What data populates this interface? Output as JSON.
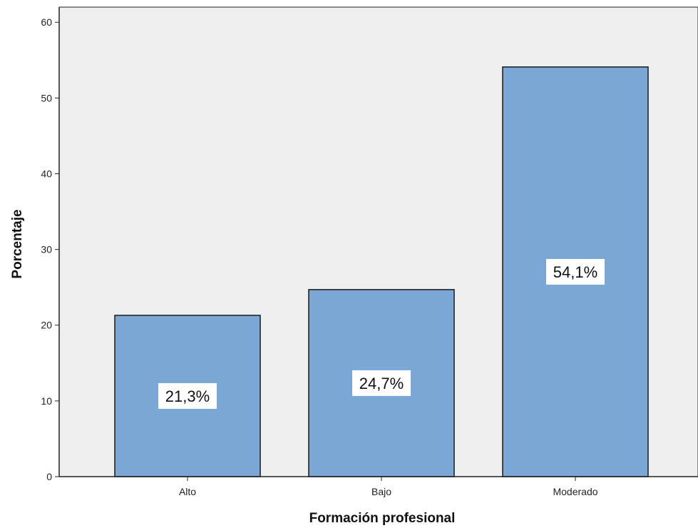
{
  "chart_data": {
    "type": "bar",
    "title": "",
    "xlabel": "Formación profesional",
    "ylabel": "Porcentaje",
    "categories": [
      "Alto",
      "Bajo",
      "Moderado"
    ],
    "values": [
      21.3,
      24.7,
      54.1
    ],
    "data_labels": [
      "21,3%",
      "24,7%",
      "54,1%"
    ],
    "ylim": [
      0,
      62
    ],
    "yticks": [
      0,
      10,
      20,
      30,
      40,
      50,
      60
    ],
    "grid": false,
    "legend": "none",
    "colors": {
      "bar_fill": "#7ba7d5",
      "bar_stroke": "#1a1a1a",
      "plot_background": "#efefef",
      "label_background": "#ffffff"
    }
  }
}
